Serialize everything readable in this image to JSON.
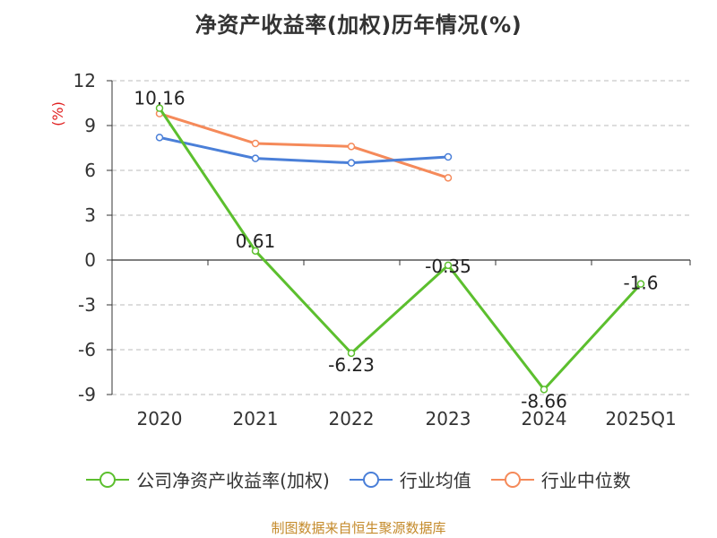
{
  "title": "净资产收益率(加权)历年情况(%)",
  "source": "制图数据来自恒生聚源数据库",
  "colors": {
    "series_company": "#5cbf2e",
    "series_avg": "#4a7fd8",
    "series_median": "#f58a5a",
    "axis": "#333333",
    "grid": "#bbbbbb",
    "unit": "#e02020"
  },
  "chart_data": {
    "type": "line",
    "title": "净资产收益率(加权)历年情况(%)",
    "ylabel": "(%)",
    "xlabel": "",
    "ylim": [
      -9,
      12
    ],
    "yticks": [
      12,
      9,
      6,
      3,
      0,
      -3,
      -6,
      -9
    ],
    "categories": [
      "2020",
      "2021",
      "2022",
      "2023",
      "2024",
      "2025Q1"
    ],
    "grid": true,
    "legend_position": "bottom",
    "series": [
      {
        "name": "公司净资产收益率(加权)",
        "values": [
          10.16,
          0.61,
          -6.23,
          -0.35,
          -8.66,
          -1.6
        ],
        "labels": [
          "10.16",
          "0.61",
          "-6.23",
          "-0.35",
          "-8.66",
          "-1.6"
        ]
      },
      {
        "name": "行业均值",
        "values": [
          8.2,
          6.8,
          6.5,
          6.9,
          null,
          null
        ]
      },
      {
        "name": "行业中位数",
        "values": [
          9.8,
          7.8,
          7.6,
          5.5,
          null,
          null
        ]
      }
    ]
  }
}
